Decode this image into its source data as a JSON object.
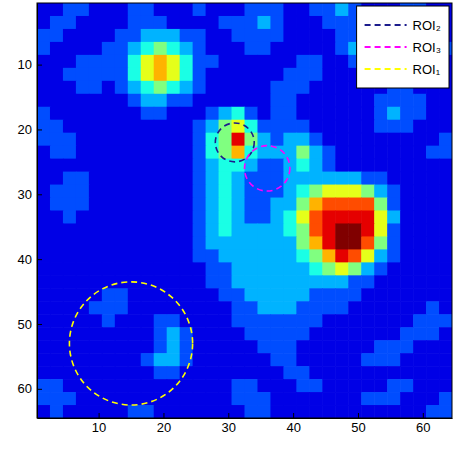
{
  "chart_data": {
    "type": "heatmap",
    "xlim": [
      0.5,
      64.5
    ],
    "ylim": [
      64.5,
      0.5
    ],
    "xticks": [
      10,
      20,
      30,
      40,
      50,
      60
    ],
    "yticks": [
      10,
      20,
      30,
      40,
      50,
      60
    ],
    "zlim": [
      0,
      10
    ],
    "z": [
      [
        1,
        1,
        2,
        2,
        1,
        1,
        1,
        2,
        2,
        1,
        1,
        1,
        2,
        1,
        1,
        1,
        2,
        2,
        2,
        1,
        1,
        2,
        2,
        3,
        2,
        1,
        1,
        1,
        2,
        2,
        1,
        1
      ],
      [
        1,
        2,
        2,
        1,
        1,
        1,
        1,
        2,
        2,
        2,
        1,
        1,
        1,
        1,
        2,
        2,
        2,
        3,
        2,
        1,
        1,
        1,
        2,
        2,
        2,
        1,
        1,
        1,
        2,
        1,
        1,
        1
      ],
      [
        2,
        2,
        1,
        1,
        1,
        1,
        2,
        2,
        3,
        3,
        3,
        2,
        2,
        1,
        1,
        2,
        2,
        2,
        2,
        1,
        1,
        1,
        1,
        2,
        2,
        2,
        1,
        1,
        1,
        2,
        2,
        1
      ],
      [
        2,
        1,
        1,
        1,
        1,
        2,
        2,
        3,
        4,
        5,
        4,
        3,
        2,
        1,
        1,
        1,
        2,
        2,
        1,
        1,
        1,
        1,
        1,
        2,
        3,
        3,
        2,
        1,
        1,
        1,
        2,
        2
      ],
      [
        1,
        1,
        1,
        2,
        2,
        2,
        2,
        4,
        6,
        7,
        6,
        4,
        2,
        2,
        1,
        1,
        1,
        1,
        1,
        1,
        2,
        2,
        1,
        1,
        2,
        3,
        3,
        2,
        1,
        1,
        1,
        1
      ],
      [
        1,
        1,
        2,
        2,
        2,
        2,
        2,
        4,
        6,
        7,
        6,
        4,
        2,
        1,
        1,
        1,
        1,
        1,
        1,
        2,
        2,
        2,
        1,
        1,
        1,
        2,
        2,
        2,
        1,
        1,
        1,
        1
      ],
      [
        1,
        1,
        1,
        2,
        2,
        1,
        2,
        3,
        4,
        5,
        4,
        3,
        2,
        1,
        1,
        1,
        1,
        1,
        2,
        2,
        2,
        1,
        1,
        1,
        1,
        1,
        1,
        2,
        2,
        1,
        1,
        1
      ],
      [
        1,
        1,
        1,
        1,
        1,
        1,
        1,
        2,
        3,
        3,
        2,
        2,
        1,
        1,
        1,
        1,
        1,
        1,
        2,
        2,
        1,
        1,
        1,
        1,
        1,
        1,
        2,
        2,
        2,
        2,
        1,
        1
      ],
      [
        2,
        1,
        1,
        1,
        1,
        1,
        1,
        1,
        2,
        2,
        1,
        1,
        1,
        2,
        3,
        4,
        2,
        1,
        2,
        2,
        1,
        1,
        1,
        1,
        1,
        1,
        2,
        3,
        2,
        2,
        1,
        1
      ],
      [
        2,
        2,
        1,
        1,
        1,
        1,
        1,
        1,
        1,
        1,
        1,
        1,
        2,
        3,
        5,
        6,
        4,
        2,
        2,
        2,
        2,
        1,
        1,
        1,
        1,
        1,
        2,
        2,
        2,
        1,
        1,
        1
      ],
      [
        2,
        2,
        2,
        1,
        1,
        1,
        1,
        1,
        1,
        1,
        1,
        1,
        2,
        4,
        5,
        9,
        5,
        3,
        2,
        3,
        3,
        2,
        1,
        1,
        1,
        1,
        1,
        1,
        1,
        1,
        1,
        2
      ],
      [
        1,
        2,
        2,
        1,
        1,
        1,
        1,
        1,
        1,
        1,
        1,
        1,
        2,
        4,
        5,
        7,
        4,
        3,
        3,
        3,
        5,
        3,
        2,
        1,
        1,
        1,
        1,
        1,
        1,
        1,
        2,
        2
      ],
      [
        1,
        1,
        1,
        1,
        1,
        1,
        1,
        1,
        1,
        1,
        1,
        1,
        2,
        3,
        4,
        4,
        3,
        2,
        2,
        3,
        4,
        3,
        2,
        1,
        1,
        1,
        1,
        1,
        1,
        1,
        1,
        1
      ],
      [
        1,
        1,
        2,
        2,
        1,
        1,
        1,
        1,
        1,
        1,
        1,
        1,
        2,
        3,
        4,
        3,
        2,
        2,
        2,
        3,
        3,
        3,
        3,
        3,
        3,
        2,
        2,
        1,
        1,
        1,
        1,
        1
      ],
      [
        1,
        2,
        2,
        2,
        1,
        1,
        1,
        1,
        1,
        1,
        1,
        1,
        2,
        3,
        4,
        3,
        2,
        2,
        2,
        3,
        4,
        5,
        6,
        6,
        6,
        5,
        3,
        2,
        1,
        1,
        1,
        1
      ],
      [
        1,
        2,
        2,
        2,
        1,
        1,
        1,
        1,
        1,
        1,
        1,
        1,
        2,
        3,
        4,
        3,
        2,
        2,
        3,
        3,
        5,
        7,
        8,
        8,
        8,
        8,
        5,
        2,
        1,
        1,
        1,
        1
      ],
      [
        1,
        1,
        2,
        1,
        1,
        1,
        1,
        1,
        1,
        1,
        1,
        1,
        2,
        3,
        4,
        3,
        2,
        2,
        3,
        4,
        6,
        8,
        9,
        9,
        9,
        9,
        6,
        3,
        1,
        1,
        1,
        1
      ],
      [
        1,
        1,
        1,
        1,
        1,
        1,
        1,
        1,
        1,
        1,
        1,
        1,
        2,
        3,
        4,
        3,
        3,
        3,
        3,
        4,
        5,
        8,
        9,
        10,
        10,
        9,
        6,
        2,
        1,
        1,
        1,
        1
      ],
      [
        1,
        1,
        1,
        1,
        1,
        1,
        1,
        1,
        1,
        1,
        1,
        1,
        2,
        3,
        3,
        3,
        3,
        3,
        3,
        3,
        5,
        7,
        9,
        10,
        10,
        8,
        5,
        2,
        1,
        1,
        1,
        1
      ],
      [
        1,
        1,
        1,
        1,
        1,
        1,
        1,
        1,
        1,
        1,
        1,
        1,
        2,
        2,
        3,
        3,
        3,
        3,
        3,
        3,
        4,
        5,
        7,
        9,
        8,
        6,
        3,
        2,
        1,
        1,
        1,
        1
      ],
      [
        1,
        1,
        1,
        1,
        1,
        1,
        1,
        1,
        1,
        1,
        1,
        1,
        1,
        2,
        2,
        3,
        3,
        3,
        3,
        3,
        3,
        4,
        5,
        6,
        5,
        3,
        2,
        1,
        1,
        1,
        1,
        1
      ],
      [
        1,
        1,
        1,
        1,
        1,
        1,
        1,
        1,
        1,
        1,
        1,
        1,
        1,
        2,
        2,
        3,
        3,
        3,
        3,
        3,
        3,
        3,
        3,
        3,
        2,
        2,
        1,
        1,
        1,
        1,
        1,
        1
      ],
      [
        1,
        1,
        1,
        1,
        1,
        2,
        2,
        1,
        1,
        1,
        1,
        1,
        1,
        1,
        2,
        2,
        3,
        3,
        3,
        3,
        3,
        2,
        2,
        2,
        2,
        1,
        1,
        1,
        1,
        1,
        1,
        1
      ],
      [
        1,
        1,
        1,
        1,
        2,
        2,
        2,
        1,
        1,
        1,
        1,
        1,
        1,
        1,
        1,
        2,
        2,
        3,
        3,
        3,
        2,
        2,
        2,
        2,
        1,
        1,
        1,
        1,
        1,
        1,
        2,
        1
      ],
      [
        1,
        1,
        1,
        1,
        1,
        2,
        1,
        1,
        1,
        2,
        2,
        1,
        1,
        1,
        1,
        2,
        2,
        2,
        2,
        2,
        2,
        2,
        1,
        1,
        1,
        1,
        1,
        1,
        1,
        2,
        2,
        2
      ],
      [
        1,
        1,
        1,
        1,
        1,
        1,
        1,
        1,
        1,
        2,
        3,
        2,
        1,
        1,
        1,
        1,
        2,
        2,
        2,
        2,
        2,
        1,
        1,
        1,
        1,
        1,
        1,
        1,
        2,
        2,
        2,
        1
      ],
      [
        1,
        1,
        1,
        1,
        1,
        1,
        1,
        1,
        1,
        2,
        3,
        2,
        1,
        1,
        1,
        1,
        1,
        2,
        2,
        2,
        1,
        1,
        1,
        1,
        1,
        1,
        2,
        2,
        2,
        1,
        1,
        1
      ],
      [
        1,
        1,
        1,
        1,
        1,
        1,
        1,
        1,
        2,
        3,
        3,
        2,
        1,
        1,
        1,
        1,
        1,
        1,
        2,
        2,
        1,
        1,
        1,
        1,
        1,
        2,
        2,
        2,
        1,
        1,
        1,
        1
      ],
      [
        1,
        1,
        1,
        1,
        1,
        1,
        1,
        1,
        1,
        2,
        2,
        1,
        1,
        1,
        1,
        1,
        1,
        1,
        1,
        2,
        2,
        1,
        1,
        1,
        1,
        1,
        1,
        1,
        1,
        1,
        1,
        1
      ],
      [
        2,
        2,
        1,
        1,
        1,
        1,
        1,
        1,
        1,
        1,
        1,
        1,
        1,
        1,
        1,
        2,
        2,
        1,
        1,
        1,
        2,
        2,
        1,
        1,
        1,
        1,
        1,
        2,
        2,
        1,
        1,
        1
      ],
      [
        2,
        2,
        2,
        1,
        1,
        1,
        1,
        1,
        1,
        1,
        1,
        1,
        1,
        1,
        1,
        2,
        2,
        2,
        1,
        1,
        1,
        1,
        1,
        1,
        1,
        2,
        2,
        2,
        1,
        1,
        1,
        2
      ],
      [
        1,
        2,
        1,
        1,
        1,
        1,
        1,
        2,
        2,
        1,
        1,
        1,
        1,
        1,
        1,
        1,
        2,
        2,
        1,
        1,
        1,
        1,
        1,
        1,
        1,
        1,
        1,
        1,
        1,
        1,
        2,
        2
      ]
    ],
    "circles": [
      {
        "name": "ROI₂",
        "color": "#1c1c8c",
        "x": 31,
        "y": 22,
        "r": 3,
        "line_style": "dashed"
      },
      {
        "name": "ROI₃",
        "color": "#ff00ff",
        "x": 36,
        "y": 26,
        "r": 3.5,
        "line_style": "dashed"
      },
      {
        "name": "ROI₁",
        "color": "#ffff00",
        "x": 15,
        "y": 53,
        "r": 9.5,
        "line_style": "dashed"
      }
    ],
    "legend": "upper-right"
  }
}
